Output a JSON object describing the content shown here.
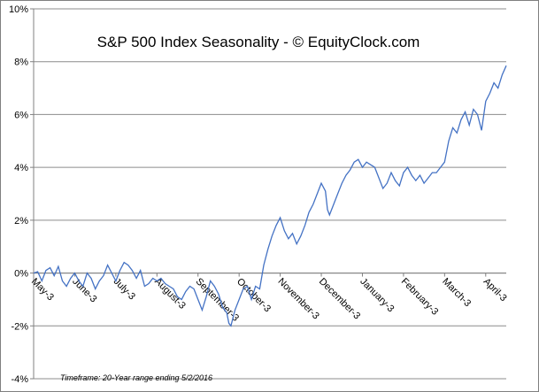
{
  "chart_data": {
    "type": "line",
    "title": "S&P 500 Index Seasonality - © EquityClock.com",
    "footnote": "Timeframe: 20-Year range ending  5/2/2016",
    "xlabel": "",
    "ylabel": "",
    "ylim": [
      -4,
      10
    ],
    "y_ticks": [
      -4,
      -2,
      0,
      2,
      4,
      6,
      8,
      10
    ],
    "y_tick_labels": [
      "-4%",
      "-2%",
      "0%",
      "2%",
      "4%",
      "6%",
      "8%",
      "10%"
    ],
    "x_tick_labels": [
      "May-3",
      "June-3",
      "July-3",
      "August-3",
      "September-3",
      "October-3",
      "November-3",
      "December-3",
      "January-3",
      "February-3",
      "March-3",
      "April-3"
    ],
    "grid": true,
    "line_color": "#4472c4",
    "series": [
      {
        "name": "",
        "points": [
          [
            0,
            0.0
          ],
          [
            0.1,
            0.05
          ],
          [
            0.2,
            -0.3
          ],
          [
            0.3,
            0.1
          ],
          [
            0.4,
            0.2
          ],
          [
            0.5,
            -0.1
          ],
          [
            0.6,
            0.25
          ],
          [
            0.7,
            -0.3
          ],
          [
            0.8,
            -0.5
          ],
          [
            0.9,
            -0.2
          ],
          [
            1.0,
            0.0
          ],
          [
            1.1,
            -0.3
          ],
          [
            1.2,
            -0.5
          ],
          [
            1.3,
            0.0
          ],
          [
            1.4,
            -0.2
          ],
          [
            1.5,
            -0.6
          ],
          [
            1.6,
            -0.3
          ],
          [
            1.7,
            -0.1
          ],
          [
            1.8,
            0.3
          ],
          [
            1.9,
            0.0
          ],
          [
            2.0,
            -0.3
          ],
          [
            2.1,
            0.1
          ],
          [
            2.2,
            0.4
          ],
          [
            2.3,
            0.3
          ],
          [
            2.4,
            0.1
          ],
          [
            2.5,
            -0.2
          ],
          [
            2.6,
            0.1
          ],
          [
            2.7,
            -0.5
          ],
          [
            2.8,
            -0.4
          ],
          [
            2.9,
            -0.2
          ],
          [
            3.0,
            -0.3
          ],
          [
            3.1,
            -0.2
          ],
          [
            3.2,
            -0.4
          ],
          [
            3.3,
            -0.5
          ],
          [
            3.4,
            -0.6
          ],
          [
            3.5,
            -0.9
          ],
          [
            3.6,
            -1.0
          ],
          [
            3.7,
            -0.7
          ],
          [
            3.8,
            -0.5
          ],
          [
            3.9,
            -0.6
          ],
          [
            4.0,
            -1.0
          ],
          [
            4.1,
            -1.4
          ],
          [
            4.2,
            -0.9
          ],
          [
            4.3,
            -0.3
          ],
          [
            4.4,
            -0.5
          ],
          [
            4.5,
            -0.8
          ],
          [
            4.6,
            -1.3
          ],
          [
            4.7,
            -1.5
          ],
          [
            4.75,
            -1.9
          ],
          [
            4.8,
            -2.0
          ],
          [
            4.9,
            -1.4
          ],
          [
            5.0,
            -1.0
          ],
          [
            5.1,
            -0.6
          ],
          [
            5.2,
            -0.5
          ],
          [
            5.3,
            -1.0
          ],
          [
            5.4,
            -0.5
          ],
          [
            5.5,
            -0.6
          ],
          [
            5.6,
            0.3
          ],
          [
            5.7,
            0.9
          ],
          [
            5.8,
            1.4
          ],
          [
            5.9,
            1.8
          ],
          [
            6.0,
            2.1
          ],
          [
            6.1,
            1.6
          ],
          [
            6.2,
            1.3
          ],
          [
            6.3,
            1.5
          ],
          [
            6.4,
            1.1
          ],
          [
            6.5,
            1.4
          ],
          [
            6.6,
            1.8
          ],
          [
            6.7,
            2.3
          ],
          [
            6.8,
            2.6
          ],
          [
            6.9,
            3.0
          ],
          [
            7.0,
            3.4
          ],
          [
            7.1,
            3.1
          ],
          [
            7.15,
            2.4
          ],
          [
            7.2,
            2.2
          ],
          [
            7.3,
            2.6
          ],
          [
            7.4,
            3.0
          ],
          [
            7.5,
            3.4
          ],
          [
            7.6,
            3.7
          ],
          [
            7.7,
            3.9
          ],
          [
            7.8,
            4.2
          ],
          [
            7.9,
            4.3
          ],
          [
            8.0,
            4.0
          ],
          [
            8.1,
            4.2
          ],
          [
            8.2,
            4.1
          ],
          [
            8.3,
            4.0
          ],
          [
            8.4,
            3.6
          ],
          [
            8.5,
            3.2
          ],
          [
            8.6,
            3.4
          ],
          [
            8.7,
            3.8
          ],
          [
            8.8,
            3.5
          ],
          [
            8.9,
            3.3
          ],
          [
            9.0,
            3.8
          ],
          [
            9.1,
            4.0
          ],
          [
            9.2,
            3.7
          ],
          [
            9.3,
            3.5
          ],
          [
            9.4,
            3.7
          ],
          [
            9.5,
            3.4
          ],
          [
            9.6,
            3.6
          ],
          [
            9.7,
            3.8
          ],
          [
            9.8,
            3.8
          ],
          [
            9.9,
            4.0
          ],
          [
            10.0,
            4.2
          ],
          [
            10.1,
            5.0
          ],
          [
            10.2,
            5.5
          ],
          [
            10.3,
            5.3
          ],
          [
            10.4,
            5.8
          ],
          [
            10.5,
            6.1
          ],
          [
            10.6,
            5.6
          ],
          [
            10.7,
            6.2
          ],
          [
            10.8,
            6.0
          ],
          [
            10.9,
            5.4
          ],
          [
            11.0,
            6.5
          ],
          [
            11.1,
            6.8
          ],
          [
            11.2,
            7.2
          ],
          [
            11.3,
            7.0
          ],
          [
            11.4,
            7.5
          ],
          [
            11.5,
            7.85
          ]
        ]
      }
    ]
  }
}
